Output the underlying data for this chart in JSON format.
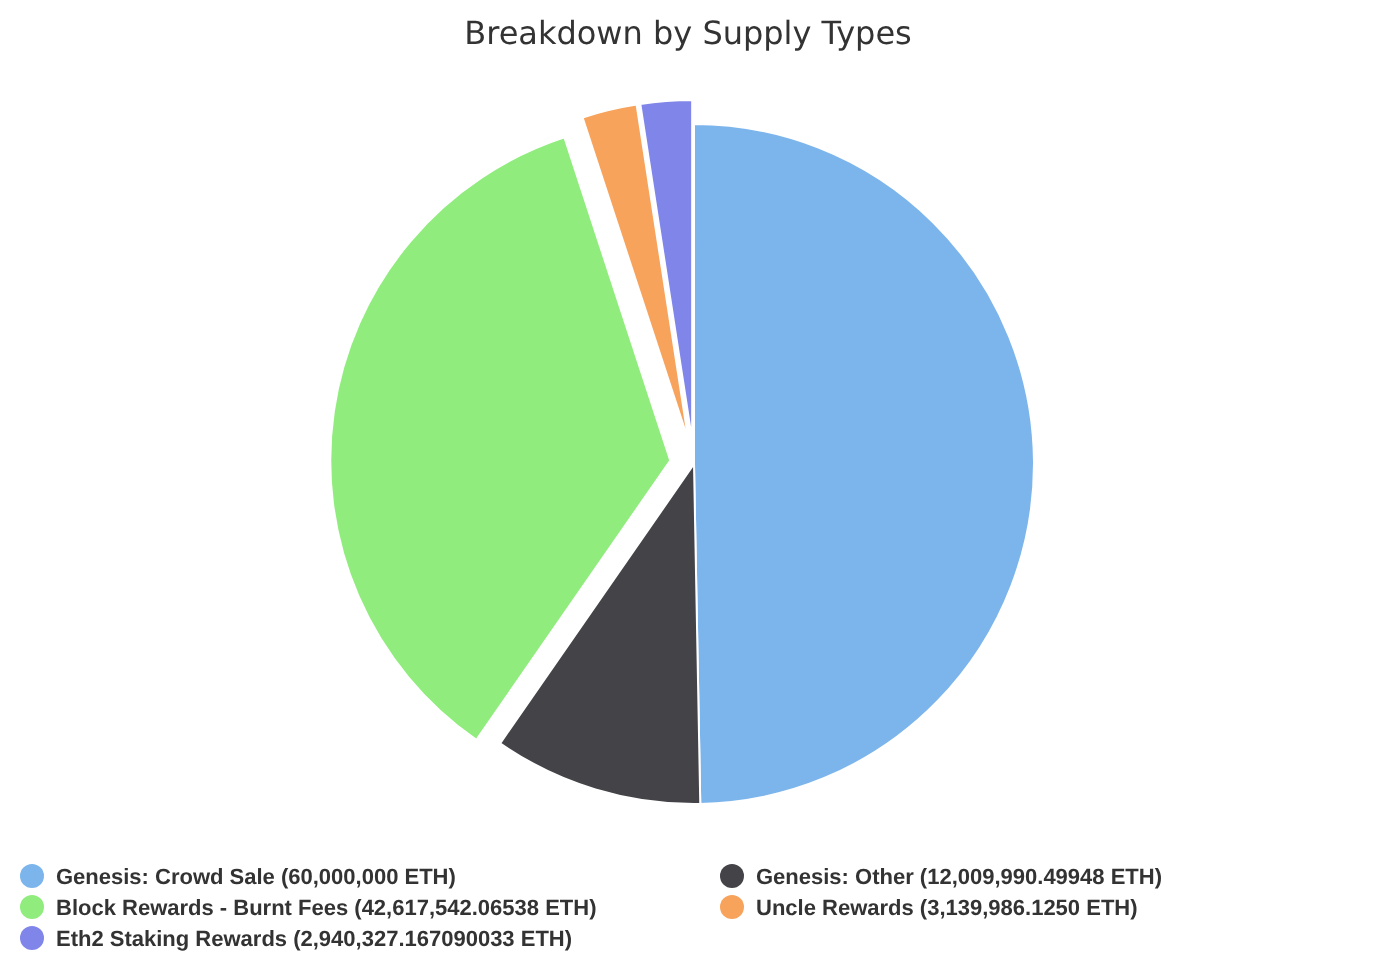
{
  "chart_data": {
    "type": "pie",
    "title": "Breakdown by Supply Types",
    "categories": [
      "Genesis: Crowd Sale (60,000,000 ETH)",
      "Genesis: Other (12,009,990.49948 ETH)",
      "Block Rewards - Burnt Fees (42,617,542.06538 ETH)",
      "Uncle Rewards (3,139,986.1250 ETH)",
      "Eth2 Staking Rewards (2,940,327.167090033 ETH)"
    ],
    "values": [
      60000000,
      12009990.49948,
      42617542.06538,
      3139986.125,
      2940327.167090033
    ],
    "colors": [
      "#7cb5ec",
      "#434348",
      "#90ed7d",
      "#f7a35c",
      "#8085e9"
    ],
    "legend": "bottom"
  }
}
